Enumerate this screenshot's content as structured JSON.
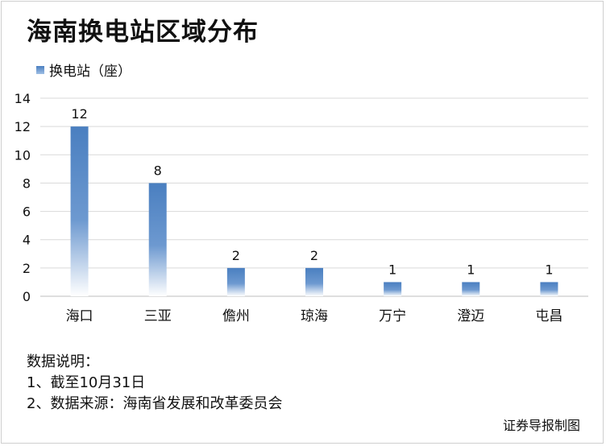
{
  "chart_data": {
    "type": "bar",
    "title": "海南换电站区域分布",
    "categories": [
      "海口",
      "三亚",
      "儋州",
      "琼海",
      "万宁",
      "澄迈",
      "屯昌"
    ],
    "series": [
      {
        "name": "换电站（座）",
        "values": [
          12,
          8,
          2,
          2,
          1,
          1,
          1
        ],
        "color": "#4a7fc0"
      }
    ],
    "data_labels": [
      "12",
      "8",
      "2",
      "2",
      "1",
      "1",
      "1"
    ],
    "ylim": [
      0,
      14
    ],
    "yticks": [
      "0",
      "2",
      "4",
      "6",
      "8",
      "10",
      "12",
      "14"
    ],
    "grid": true,
    "legend_position": "top-left",
    "xlabel": "",
    "ylabel": ""
  },
  "notes": {
    "heading": "数据说明：",
    "items": [
      "1、截至10月31日",
      "2、数据来源：海南省发展和改革委员会"
    ]
  },
  "credit": "证券导报制图"
}
